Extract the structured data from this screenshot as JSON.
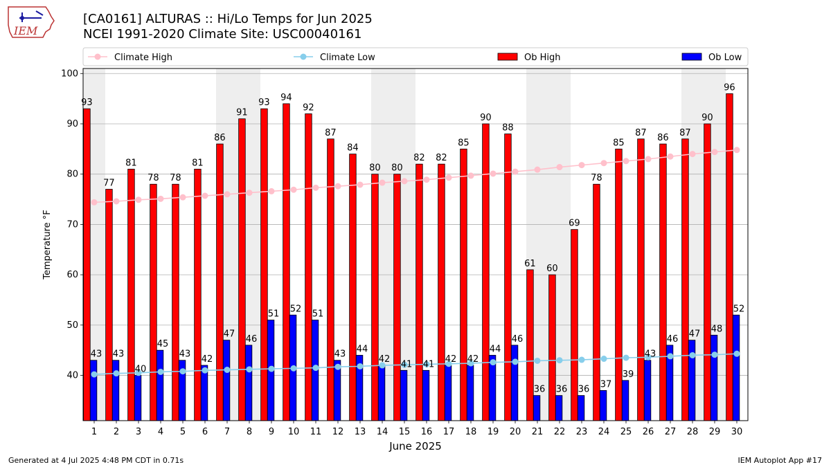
{
  "header": {
    "title_line1": "[CA0161] ALTURAS :: Hi/Lo Temps for Jun 2025",
    "title_line2": "NCEI 1991-2020 Climate Site: USC00040161",
    "logo_text": "IEM"
  },
  "footer": {
    "generated": "Generated at 4 Jul 2025 4:48 PM CDT in 0.71s",
    "app": "IEM Autoplot App #17"
  },
  "colors": {
    "ob_high": "#ff0000",
    "ob_low": "#0000ff",
    "climate_high": "#ffc0cb",
    "climate_low": "#87ceeb",
    "weekend_shade": "#eeeeee"
  },
  "chart_data": {
    "type": "bar",
    "xlabel": "June 2025",
    "ylabel": "Temperature °F",
    "ylim": [
      31,
      101
    ],
    "yticks": [
      40,
      50,
      60,
      70,
      80,
      90,
      100
    ],
    "grid": "horizontal",
    "legend_position": "top",
    "categories": [
      "1",
      "2",
      "3",
      "4",
      "5",
      "6",
      "7",
      "8",
      "9",
      "10",
      "11",
      "12",
      "13",
      "14",
      "15",
      "16",
      "17",
      "18",
      "19",
      "20",
      "21",
      "22",
      "23",
      "24",
      "25",
      "26",
      "27",
      "28",
      "29",
      "30"
    ],
    "shaded_days": [
      1,
      7,
      8,
      14,
      15,
      21,
      22,
      28,
      29
    ],
    "series": [
      {
        "name": "Climate High",
        "kind": "line",
        "color": "#ffc0cb",
        "values": [
          74.4,
          74.6,
          74.9,
          75.1,
          75.4,
          75.7,
          76.0,
          76.3,
          76.6,
          76.9,
          77.3,
          77.6,
          77.9,
          78.3,
          78.6,
          78.9,
          79.3,
          79.7,
          80.1,
          80.5,
          80.9,
          81.4,
          81.8,
          82.2,
          82.6,
          83.0,
          83.5,
          84.0,
          84.4,
          84.8
        ]
      },
      {
        "name": "Climate Low",
        "kind": "line",
        "color": "#87ceeb",
        "values": [
          40.2,
          40.4,
          40.5,
          40.7,
          40.8,
          41.0,
          41.1,
          41.2,
          41.3,
          41.4,
          41.5,
          41.7,
          41.8,
          42.0,
          42.1,
          42.2,
          42.3,
          42.4,
          42.6,
          42.7,
          42.9,
          43.0,
          43.1,
          43.3,
          43.5,
          43.6,
          43.8,
          44.0,
          44.1,
          44.3
        ]
      },
      {
        "name": "Ob High",
        "kind": "bar",
        "color": "#ff0000",
        "values": [
          93,
          77,
          81,
          78,
          78,
          81,
          86,
          91,
          93,
          94,
          92,
          87,
          84,
          80,
          80,
          82,
          82,
          85,
          90,
          88,
          61,
          60,
          69,
          78,
          85,
          87,
          86,
          87,
          90,
          96
        ]
      },
      {
        "name": "Ob Low",
        "kind": "bar",
        "color": "#0000ff",
        "values": [
          43,
          43,
          40,
          45,
          43,
          42,
          47,
          46,
          51,
          52,
          51,
          43,
          44,
          42,
          41,
          41,
          42,
          42,
          44,
          46,
          36,
          36,
          36,
          37,
          39,
          43,
          46,
          47,
          48,
          52
        ]
      }
    ]
  }
}
